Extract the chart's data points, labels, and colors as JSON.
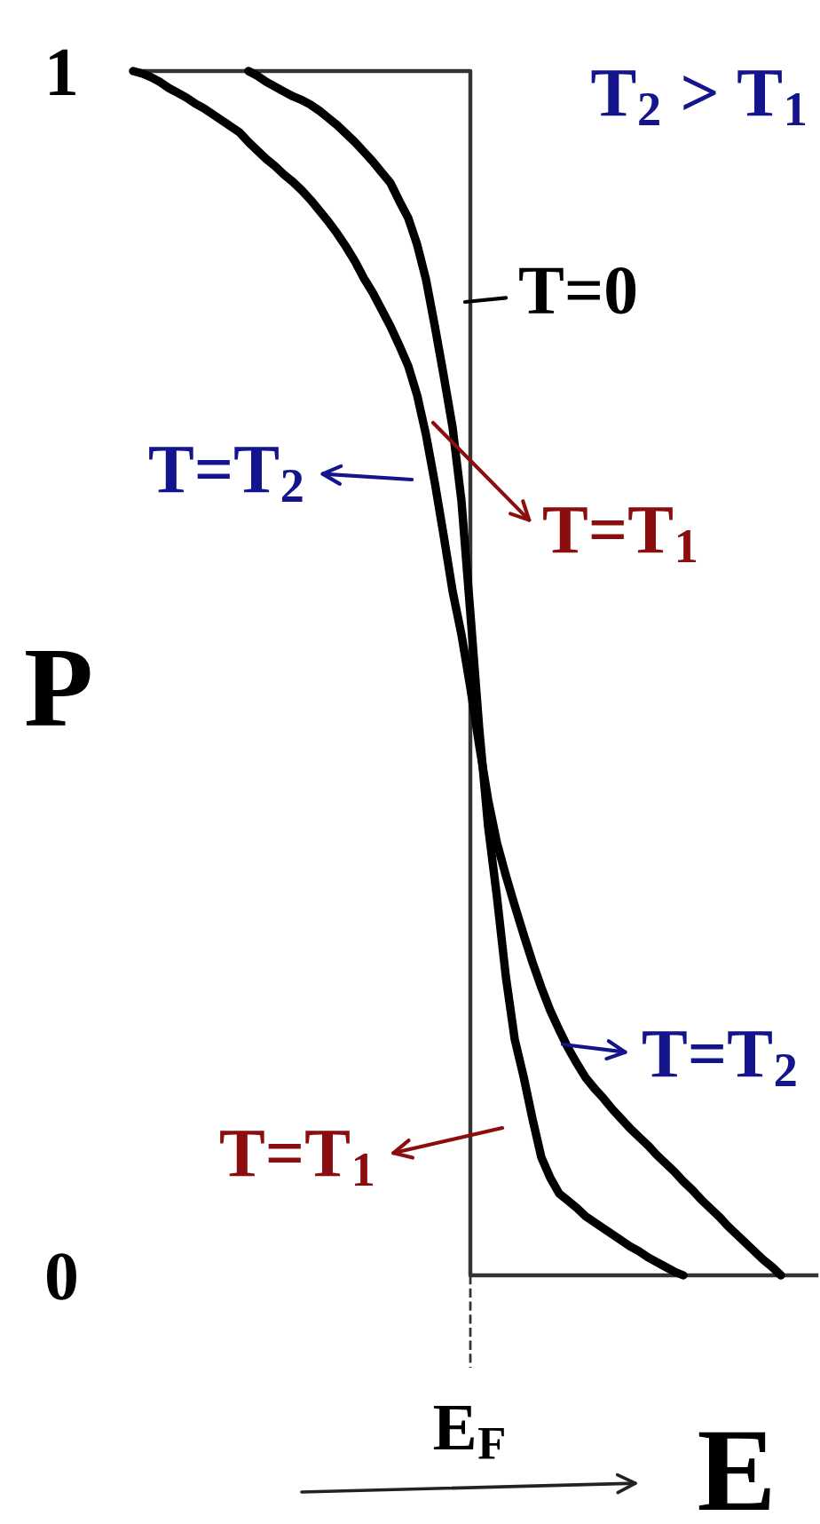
{
  "chart_data": {
    "type": "line",
    "xlabel": "E",
    "ylabel": "P",
    "categories": [
      null,
      null,
      null,
      null,
      null,
      null,
      null,
      null,
      null,
      null,
      null,
      null,
      null,
      null,
      null,
      null,
      null,
      null,
      null,
      null,
      null,
      null,
      null,
      null,
      null,
      null,
      null,
      null,
      null,
      null,
      null,
      null,
      null,
      null,
      null,
      null,
      null,
      null,
      "E$_{F}$",
      null,
      null,
      null,
      null,
      null,
      null,
      null,
      null,
      null,
      null,
      null,
      null,
      null,
      null,
      null,
      null,
      null,
      null,
      null,
      null,
      null,
      null,
      null,
      null,
      null,
      null,
      null,
      null,
      null,
      null,
      null,
      null,
      null,
      null,
      null,
      null,
      null,
      null,
      null
    ],
    "ylim": [
      0,
      1
    ],
    "yticks": [
      0,
      1
    ],
    "annotations": [
      "T$_{2}$ > T$_{1}$",
      "T=0",
      "T=T$_{2}$",
      "T=T$_{1}$",
      "T=T$_{2}$",
      "T=T$_{1}$"
    ],
    "series": [
      {
        "type": "step",
        "color": "#333333",
        "values": [
          1,
          1,
          1,
          1,
          1,
          1,
          1,
          1,
          1,
          1,
          1,
          1,
          1,
          1,
          1,
          1,
          1,
          1,
          1,
          1,
          1,
          1,
          1,
          1,
          1,
          1,
          1,
          1,
          1,
          1,
          1,
          1,
          1,
          1,
          1,
          1,
          1,
          1,
          0,
          0,
          0,
          0,
          0,
          0,
          0,
          0,
          0,
          0,
          0,
          0,
          0,
          0,
          0,
          0,
          0,
          0,
          0,
          0,
          0,
          0,
          0,
          0,
          0,
          0,
          0,
          0,
          0,
          0,
          0,
          0,
          0,
          0,
          0,
          0,
          0,
          0,
          0,
          0
        ]
      },
      {
        "color": "#000000",
        "values": [
          null,
          null,
          null,
          null,
          null,
          null,
          null,
          null,
          null,
          null,
          null,
          null,
          null,
          1,
          0.996,
          0.991,
          0.987,
          0.983,
          0.979,
          0.976,
          0.972,
          0.967,
          0.961,
          0.955,
          0.948,
          0.941,
          0.933,
          0.925,
          0.916,
          0.907,
          0.892,
          0.878,
          0.856,
          0.827,
          0.788,
          0.747,
          0.704,
          0.643,
          0.55,
          0.454,
          0.373,
          0.314,
          0.248,
          0.196,
          0.165,
          0.13,
          0.098,
          0.081,
          0.068,
          0.062,
          0.056,
          0.049,
          0.044,
          0.039,
          0.034,
          0.029,
          0.024,
          0.02,
          0.015,
          0.011,
          0.007,
          0.003,
          0,
          null,
          null,
          null,
          null,
          null,
          null,
          null,
          null,
          null,
          null,
          null,
          null,
          null,
          null,
          null
        ]
      },
      {
        "color": "#000000",
        "values": [
          1,
          0.998,
          0.995,
          0.991,
          0.986,
          0.982,
          0.978,
          0.973,
          0.969,
          0.964,
          0.959,
          0.954,
          0.949,
          0.941,
          0.934,
          0.927,
          0.921,
          0.914,
          0.908,
          0.901,
          0.893,
          0.884,
          0.875,
          0.865,
          0.854,
          0.842,
          0.828,
          0.816,
          0.802,
          0.788,
          0.772,
          0.755,
          0.731,
          0.698,
          0.658,
          0.614,
          0.568,
          0.532,
          0.488,
          0.44,
          0.395,
          0.359,
          0.332,
          0.307,
          0.283,
          0.26,
          0.239,
          0.22,
          0.204,
          0.189,
          0.176,
          0.164,
          0.155,
          0.147,
          0.138,
          0.13,
          0.122,
          0.115,
          0.108,
          0.1,
          0.093,
          0.086,
          0.078,
          0.071,
          0.063,
          0.056,
          0.049,
          0.041,
          0.034,
          0.027,
          0.02,
          0.013,
          0.007,
          0,
          null,
          null,
          null,
          null
        ]
      }
    ]
  }
}
